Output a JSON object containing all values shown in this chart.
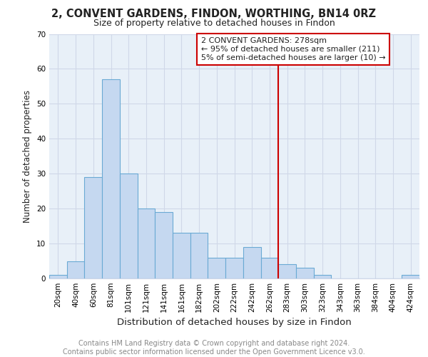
{
  "title1": "2, CONVENT GARDENS, FINDON, WORTHING, BN14 0RZ",
  "title2": "Size of property relative to detached houses in Findon",
  "xlabel": "Distribution of detached houses by size in Findon",
  "ylabel": "Number of detached properties",
  "bar_labels": [
    "20sqm",
    "40sqm",
    "60sqm",
    "81sqm",
    "101sqm",
    "121sqm",
    "141sqm",
    "161sqm",
    "182sqm",
    "202sqm",
    "222sqm",
    "242sqm",
    "262sqm",
    "283sqm",
    "303sqm",
    "323sqm",
    "343sqm",
    "363sqm",
    "384sqm",
    "404sqm",
    "424sqm"
  ],
  "bar_values": [
    1,
    5,
    29,
    57,
    30,
    20,
    19,
    13,
    13,
    6,
    6,
    9,
    6,
    4,
    3,
    1,
    0,
    0,
    0,
    0,
    1
  ],
  "bar_color": "#c5d8f0",
  "bar_edgecolor": "#6aaad4",
  "vline_color": "#cc0000",
  "annotation_text": "2 CONVENT GARDENS: 278sqm\n← 95% of detached houses are smaller (211)\n5% of semi-detached houses are larger (10) →",
  "annotation_box_facecolor": "#ffffff",
  "annotation_box_edgecolor": "#cc0000",
  "ylim": [
    0,
    70
  ],
  "yticks": [
    0,
    10,
    20,
    30,
    40,
    50,
    60,
    70
  ],
  "grid_color": "#d0d8e8",
  "background_color": "#e8f0f8",
  "footer_text": "Contains HM Land Registry data © Crown copyright and database right 2024.\nContains public sector information licensed under the Open Government Licence v3.0.",
  "title1_fontsize": 10.5,
  "title2_fontsize": 9,
  "xlabel_fontsize": 9.5,
  "ylabel_fontsize": 8.5,
  "tick_fontsize": 7.5,
  "annotation_fontsize": 8,
  "footer_fontsize": 7
}
